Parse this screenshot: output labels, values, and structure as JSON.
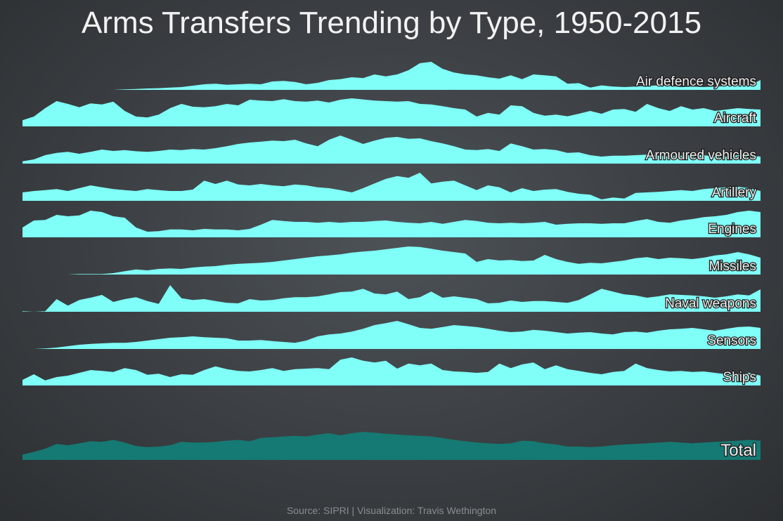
{
  "title": "Arms Transfers Trending by Type, 1950-2015",
  "source": "Source: SIPRI | Visualization: Travis Wethington",
  "colors": {
    "area": "#7ffff7",
    "total": "#157a73"
  },
  "chart_data": {
    "type": "area",
    "x_start": 1950,
    "x_end": 2015,
    "series": [
      {
        "name": "Air defence systems",
        "values": [
          0,
          0,
          0,
          0,
          0,
          0,
          0,
          0,
          0,
          0.02,
          0.03,
          0.05,
          0.06,
          0.08,
          0.1,
          0.15,
          0.2,
          0.22,
          0.18,
          0.2,
          0.22,
          0.2,
          0.3,
          0.32,
          0.28,
          0.2,
          0.25,
          0.35,
          0.38,
          0.45,
          0.42,
          0.55,
          0.48,
          0.55,
          0.7,
          0.95,
          1.0,
          0.75,
          0.62,
          0.55,
          0.52,
          0.45,
          0.4,
          0.52,
          0.38,
          0.55,
          0.52,
          0.48,
          0.22,
          0.24,
          0.08,
          0.16,
          0.12,
          0.1,
          0.12,
          0.14,
          0.16,
          0.14,
          0.1,
          0.12,
          0.1,
          0.12,
          0.14,
          0.18,
          0.15,
          0.35
        ]
      },
      {
        "name": "Aircraft",
        "values": [
          0.22,
          0.35,
          0.65,
          0.9,
          0.8,
          0.68,
          0.82,
          0.78,
          0.88,
          0.55,
          0.35,
          0.32,
          0.42,
          0.65,
          0.8,
          0.7,
          0.68,
          0.72,
          0.8,
          0.75,
          0.95,
          0.92,
          0.9,
          0.97,
          0.9,
          0.88,
          0.92,
          0.85,
          0.95,
          1.0,
          0.96,
          0.92,
          0.9,
          0.88,
          0.9,
          0.8,
          0.78,
          0.72,
          0.65,
          0.6,
          0.35,
          0.48,
          0.42,
          0.75,
          0.72,
          0.48,
          0.38,
          0.42,
          0.36,
          0.45,
          0.55,
          0.45,
          0.6,
          0.62,
          0.52,
          0.8,
          0.65,
          0.55,
          0.72,
          0.6,
          0.65,
          0.55,
          0.6,
          0.65,
          0.62,
          0.6
        ]
      },
      {
        "name": "Armoured vehicles",
        "values": [
          0.08,
          0.15,
          0.3,
          0.38,
          0.42,
          0.35,
          0.42,
          0.5,
          0.45,
          0.48,
          0.44,
          0.42,
          0.45,
          0.5,
          0.48,
          0.52,
          0.5,
          0.55,
          0.62,
          0.7,
          0.75,
          0.78,
          0.82,
          0.8,
          0.85,
          0.72,
          0.62,
          0.85,
          1.0,
          0.85,
          0.7,
          0.82,
          0.92,
          0.95,
          0.88,
          0.9,
          0.8,
          0.72,
          0.62,
          0.5,
          0.48,
          0.52,
          0.45,
          0.72,
          0.62,
          0.5,
          0.52,
          0.48,
          0.38,
          0.4,
          0.3,
          0.25,
          0.28,
          0.28,
          0.3,
          0.32,
          0.28,
          0.25,
          0.28,
          0.3,
          0.3,
          0.25,
          0.25,
          0.3,
          0.28,
          0.25
        ]
      },
      {
        "name": "Artillery",
        "values": [
          0.3,
          0.35,
          0.38,
          0.42,
          0.35,
          0.45,
          0.55,
          0.48,
          0.42,
          0.38,
          0.35,
          0.42,
          0.38,
          0.35,
          0.35,
          0.4,
          0.72,
          0.6,
          0.72,
          0.58,
          0.55,
          0.6,
          0.55,
          0.52,
          0.58,
          0.55,
          0.48,
          0.45,
          0.38,
          0.3,
          0.45,
          0.62,
          0.78,
          0.88,
          0.82,
          1.0,
          0.62,
          0.68,
          0.72,
          0.55,
          0.38,
          0.55,
          0.48,
          0.3,
          0.45,
          0.35,
          0.4,
          0.42,
          0.32,
          0.25,
          0.22,
          0.05,
          0.12,
          0.08,
          0.28,
          0.3,
          0.32,
          0.35,
          0.38,
          0.35,
          0.42,
          0.45,
          0.48,
          0.5,
          0.45,
          0.35
        ]
      },
      {
        "name": "Engines",
        "values": [
          0.35,
          0.6,
          0.62,
          0.8,
          0.75,
          0.78,
          0.95,
          0.9,
          0.75,
          0.7,
          0.35,
          0.2,
          0.22,
          0.28,
          0.28,
          0.25,
          0.3,
          0.28,
          0.28,
          0.25,
          0.3,
          0.45,
          0.62,
          0.58,
          0.55,
          0.55,
          0.52,
          0.55,
          0.52,
          0.55,
          0.55,
          0.58,
          0.6,
          0.55,
          0.52,
          0.5,
          0.55,
          0.48,
          0.55,
          0.62,
          0.58,
          0.52,
          0.5,
          0.52,
          0.5,
          0.52,
          0.55,
          0.45,
          0.48,
          0.5,
          0.5,
          0.48,
          0.5,
          0.5,
          0.58,
          0.65,
          0.55,
          0.52,
          0.6,
          0.65,
          0.72,
          0.75,
          0.8,
          0.9,
          0.95,
          0.9
        ]
      },
      {
        "name": "Missiles",
        "values": [
          0,
          0,
          0,
          0,
          0,
          0.02,
          0.02,
          0.02,
          0.05,
          0.12,
          0.18,
          0.15,
          0.2,
          0.22,
          0.2,
          0.25,
          0.28,
          0.3,
          0.35,
          0.38,
          0.4,
          0.42,
          0.45,
          0.5,
          0.55,
          0.6,
          0.65,
          0.68,
          0.72,
          0.78,
          0.82,
          0.85,
          0.9,
          0.95,
          1.0,
          0.98,
          0.92,
          0.85,
          0.8,
          0.75,
          0.45,
          0.55,
          0.5,
          0.52,
          0.48,
          0.5,
          0.7,
          0.55,
          0.45,
          0.38,
          0.42,
          0.4,
          0.45,
          0.5,
          0.58,
          0.62,
          0.55,
          0.6,
          0.58,
          0.55,
          0.6,
          0.68,
          0.72,
          0.8,
          0.72,
          0.6
        ]
      },
      {
        "name": "Naval weapons",
        "values": [
          0.02,
          0,
          0.02,
          0.45,
          0.22,
          0.42,
          0.5,
          0.6,
          0.35,
          0.45,
          0.52,
          0.38,
          0.28,
          0.95,
          0.48,
          0.42,
          0.45,
          0.38,
          0.32,
          0.3,
          0.45,
          0.4,
          0.42,
          0.48,
          0.52,
          0.52,
          0.55,
          0.62,
          0.7,
          0.72,
          0.82,
          0.65,
          0.62,
          0.72,
          0.45,
          0.52,
          0.72,
          0.5,
          0.55,
          0.5,
          0.45,
          0.3,
          0.32,
          0.4,
          0.35,
          0.38,
          0.38,
          0.35,
          0.32,
          0.42,
          0.62,
          0.82,
          0.72,
          0.62,
          0.58,
          0.5,
          0.55,
          0.62,
          0.6,
          0.58,
          0.55,
          0.5,
          0.55,
          0.62,
          0.58,
          0.8
        ]
      },
      {
        "name": "Sensors",
        "values": [
          0,
          0,
          0.02,
          0.05,
          0.1,
          0.15,
          0.18,
          0.2,
          0.22,
          0.22,
          0.25,
          0.3,
          0.35,
          0.4,
          0.42,
          0.45,
          0.42,
          0.4,
          0.38,
          0.3,
          0.3,
          0.32,
          0.28,
          0.25,
          0.22,
          0.3,
          0.45,
          0.52,
          0.55,
          0.62,
          0.72,
          0.85,
          0.92,
          1.0,
          0.88,
          0.75,
          0.72,
          0.78,
          0.85,
          0.82,
          0.78,
          0.72,
          0.65,
          0.6,
          0.62,
          0.68,
          0.65,
          0.6,
          0.55,
          0.58,
          0.6,
          0.55,
          0.52,
          0.6,
          0.62,
          0.58,
          0.65,
          0.7,
          0.72,
          0.75,
          0.7,
          0.65,
          0.72,
          0.78,
          0.8,
          0.75
        ]
      },
      {
        "name": "Ships",
        "values": [
          0.2,
          0.4,
          0.18,
          0.3,
          0.35,
          0.45,
          0.55,
          0.52,
          0.48,
          0.62,
          0.55,
          0.38,
          0.42,
          0.3,
          0.4,
          0.38,
          0.55,
          0.68,
          0.58,
          0.52,
          0.5,
          0.55,
          0.62,
          0.52,
          0.58,
          0.6,
          0.62,
          0.58,
          0.92,
          1.0,
          0.88,
          0.82,
          0.88,
          0.6,
          0.78,
          0.72,
          0.78,
          0.55,
          0.5,
          0.48,
          0.45,
          0.48,
          0.78,
          0.62,
          0.75,
          0.82,
          0.58,
          0.72,
          0.58,
          0.52,
          0.45,
          0.4,
          0.48,
          0.52,
          0.78,
          0.62,
          0.55,
          0.5,
          0.52,
          0.48,
          0.5,
          0.45,
          0.4,
          0.42,
          0.45,
          0.35
        ]
      },
      {
        "name": "Total",
        "values": [
          0.2,
          0.3,
          0.42,
          0.6,
          0.55,
          0.62,
          0.7,
          0.68,
          0.75,
          0.65,
          0.52,
          0.48,
          0.5,
          0.55,
          0.68,
          0.65,
          0.65,
          0.68,
          0.72,
          0.75,
          0.7,
          0.82,
          0.85,
          0.88,
          0.9,
          0.88,
          0.95,
          1.0,
          0.92,
          1.0,
          1.05,
          1.02,
          0.98,
          0.95,
          0.92,
          0.9,
          0.88,
          0.82,
          0.75,
          0.7,
          0.65,
          0.62,
          0.6,
          0.62,
          0.72,
          0.7,
          0.62,
          0.58,
          0.5,
          0.5,
          0.48,
          0.5,
          0.55,
          0.58,
          0.6,
          0.62,
          0.65,
          0.68,
          0.65,
          0.62,
          0.65,
          0.68,
          0.7,
          0.72,
          0.75,
          0.72
        ]
      }
    ]
  }
}
